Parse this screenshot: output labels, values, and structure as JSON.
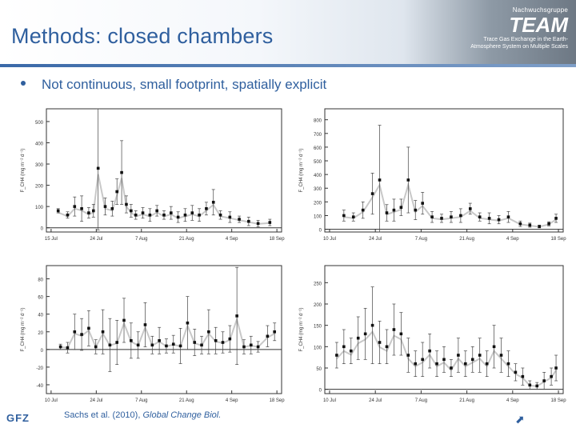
{
  "slide": {
    "title": "Methods: closed chambers",
    "bullet": "Not continuous, small footprint, spatially explicit",
    "citation_prefix": "Sachs et al. (2010), ",
    "citation_journal": "Global Change Biol.",
    "footer_logo": "GFZ"
  },
  "brand": {
    "small": "Nachwuchsgruppe",
    "name": "TEAM",
    "line1": "Trace Gas Exchange in the Earth-",
    "line2": "Atmosphere System on Multiple Scales"
  },
  "colors": {
    "title": "#2f5f9e",
    "line": "#c8c8c8",
    "marker": "#111111"
  },
  "chart_data": [
    {
      "type": "line",
      "ylabel": "F_CH4 (mg m⁻² d⁻¹)",
      "ylim": [
        -20,
        560
      ],
      "yticks": [
        0,
        100,
        200,
        300,
        400,
        500
      ],
      "xticks": [
        "15 Jul",
        "24 Jul",
        "7 Aug",
        "21 Aug",
        "4 Sep",
        "18 Sep"
      ],
      "zero_line": true,
      "points": [
        {
          "x": 0.05,
          "y": 80,
          "e": 10
        },
        {
          "x": 0.09,
          "y": 60,
          "e": 15
        },
        {
          "x": 0.12,
          "y": 100,
          "e": 45
        },
        {
          "x": 0.15,
          "y": 90,
          "e": 60
        },
        {
          "x": 0.18,
          "y": 70,
          "e": 25
        },
        {
          "x": 0.2,
          "y": 80,
          "e": 30
        },
        {
          "x": 0.22,
          "y": 280,
          "e": 290
        },
        {
          "x": 0.25,
          "y": 100,
          "e": 40
        },
        {
          "x": 0.28,
          "y": 90,
          "e": 35
        },
        {
          "x": 0.3,
          "y": 170,
          "e": 60
        },
        {
          "x": 0.32,
          "y": 260,
          "e": 150
        },
        {
          "x": 0.34,
          "y": 110,
          "e": 40
        },
        {
          "x": 0.36,
          "y": 80,
          "e": 30
        },
        {
          "x": 0.38,
          "y": 60,
          "e": 20
        },
        {
          "x": 0.41,
          "y": 70,
          "e": 25
        },
        {
          "x": 0.44,
          "y": 60,
          "e": 30
        },
        {
          "x": 0.47,
          "y": 80,
          "e": 25
        },
        {
          "x": 0.5,
          "y": 60,
          "e": 20
        },
        {
          "x": 0.53,
          "y": 70,
          "e": 30
        },
        {
          "x": 0.56,
          "y": 50,
          "e": 25
        },
        {
          "x": 0.59,
          "y": 60,
          "e": 30
        },
        {
          "x": 0.62,
          "y": 70,
          "e": 35
        },
        {
          "x": 0.65,
          "y": 60,
          "e": 30
        },
        {
          "x": 0.68,
          "y": 90,
          "e": 30
        },
        {
          "x": 0.71,
          "y": 120,
          "e": 60
        },
        {
          "x": 0.74,
          "y": 60,
          "e": 20
        },
        {
          "x": 0.78,
          "y": 50,
          "e": 25
        },
        {
          "x": 0.82,
          "y": 40,
          "e": 15
        },
        {
          "x": 0.86,
          "y": 30,
          "e": 20
        },
        {
          "x": 0.9,
          "y": 20,
          "e": 15
        },
        {
          "x": 0.95,
          "y": 25,
          "e": 15
        }
      ]
    },
    {
      "type": "line",
      "ylabel": "F_CH4 (mg m⁻² d⁻¹)",
      "ylim": [
        -20,
        880
      ],
      "yticks": [
        0,
        100,
        200,
        300,
        400,
        500,
        600,
        700,
        800
      ],
      "xticks": [
        "10 Jul",
        "24 Jul",
        "7 Aug",
        "21 Aug",
        "4 Sep",
        "18 Sep"
      ],
      "zero_line": true,
      "points": [
        {
          "x": 0.08,
          "y": 100,
          "e": 40
        },
        {
          "x": 0.12,
          "y": 90,
          "e": 30
        },
        {
          "x": 0.16,
          "y": 140,
          "e": 60
        },
        {
          "x": 0.2,
          "y": 260,
          "e": 150
        },
        {
          "x": 0.23,
          "y": 360,
          "e": 400
        },
        {
          "x": 0.26,
          "y": 120,
          "e": 60
        },
        {
          "x": 0.29,
          "y": 140,
          "e": 80
        },
        {
          "x": 0.32,
          "y": 160,
          "e": 60
        },
        {
          "x": 0.35,
          "y": 360,
          "e": 240
        },
        {
          "x": 0.38,
          "y": 140,
          "e": 70
        },
        {
          "x": 0.41,
          "y": 190,
          "e": 80
        },
        {
          "x": 0.45,
          "y": 90,
          "e": 40
        },
        {
          "x": 0.49,
          "y": 80,
          "e": 30
        },
        {
          "x": 0.53,
          "y": 90,
          "e": 40
        },
        {
          "x": 0.57,
          "y": 100,
          "e": 50
        },
        {
          "x": 0.61,
          "y": 150,
          "e": 40
        },
        {
          "x": 0.65,
          "y": 90,
          "e": 30
        },
        {
          "x": 0.69,
          "y": 80,
          "e": 40
        },
        {
          "x": 0.73,
          "y": 70,
          "e": 30
        },
        {
          "x": 0.77,
          "y": 90,
          "e": 40
        },
        {
          "x": 0.82,
          "y": 40,
          "e": 20
        },
        {
          "x": 0.86,
          "y": 30,
          "e": 15
        },
        {
          "x": 0.9,
          "y": 20,
          "e": 10
        },
        {
          "x": 0.94,
          "y": 40,
          "e": 15
        },
        {
          "x": 0.97,
          "y": 80,
          "e": 30
        }
      ]
    },
    {
      "type": "line",
      "ylabel": "F_CH4 (mg m⁻² d⁻¹)",
      "ylim": [
        -50,
        95
      ],
      "yticks": [
        -40,
        -20,
        0,
        20,
        40,
        60,
        80
      ],
      "xticks": [
        "10 Jul",
        "24 Jul",
        "7 Aug",
        "21 Aug",
        "4 Sep",
        "18 Sep"
      ],
      "zero_line": true,
      "points": [
        {
          "x": 0.06,
          "y": 3,
          "e": 3
        },
        {
          "x": 0.09,
          "y": 2,
          "e": 6
        },
        {
          "x": 0.12,
          "y": 20,
          "e": 20
        },
        {
          "x": 0.15,
          "y": 17,
          "e": 18
        },
        {
          "x": 0.18,
          "y": 24,
          "e": 20
        },
        {
          "x": 0.21,
          "y": 3,
          "e": 8
        },
        {
          "x": 0.24,
          "y": 20,
          "e": 25
        },
        {
          "x": 0.27,
          "y": 5,
          "e": 30
        },
        {
          "x": 0.3,
          "y": 8,
          "e": 25
        },
        {
          "x": 0.33,
          "y": 33,
          "e": 25
        },
        {
          "x": 0.36,
          "y": 10,
          "e": 20
        },
        {
          "x": 0.39,
          "y": 5,
          "e": 15
        },
        {
          "x": 0.42,
          "y": 28,
          "e": 25
        },
        {
          "x": 0.45,
          "y": 5,
          "e": 10
        },
        {
          "x": 0.48,
          "y": 10,
          "e": 15
        },
        {
          "x": 0.51,
          "y": 4,
          "e": 8
        },
        {
          "x": 0.54,
          "y": 6,
          "e": 10
        },
        {
          "x": 0.57,
          "y": 4,
          "e": 20
        },
        {
          "x": 0.6,
          "y": 30,
          "e": 30
        },
        {
          "x": 0.63,
          "y": 8,
          "e": 15
        },
        {
          "x": 0.66,
          "y": 5,
          "e": 10
        },
        {
          "x": 0.69,
          "y": 20,
          "e": 25
        },
        {
          "x": 0.72,
          "y": 10,
          "e": 15
        },
        {
          "x": 0.75,
          "y": 8,
          "e": 12
        },
        {
          "x": 0.78,
          "y": 12,
          "e": 15
        },
        {
          "x": 0.81,
          "y": 38,
          "e": 55
        },
        {
          "x": 0.84,
          "y": 3,
          "e": 8
        },
        {
          "x": 0.87,
          "y": 5,
          "e": 10
        },
        {
          "x": 0.9,
          "y": 3,
          "e": 6
        },
        {
          "x": 0.94,
          "y": 15,
          "e": 12
        },
        {
          "x": 0.97,
          "y": 20,
          "e": 10
        }
      ]
    },
    {
      "type": "line",
      "ylabel": "F_CH4 (mg m⁻² d⁻¹)",
      "ylim": [
        -10,
        290
      ],
      "yticks": [
        0,
        50,
        100,
        150,
        200,
        250
      ],
      "xticks": [
        "10 Jul",
        "24 Jul",
        "7 Aug",
        "21 Aug",
        "4 Sep",
        "18 Sep"
      ],
      "zero_line": true,
      "points": [
        {
          "x": 0.05,
          "y": 80,
          "e": 30
        },
        {
          "x": 0.08,
          "y": 100,
          "e": 40
        },
        {
          "x": 0.11,
          "y": 90,
          "e": 30
        },
        {
          "x": 0.14,
          "y": 120,
          "e": 50
        },
        {
          "x": 0.17,
          "y": 130,
          "e": 60
        },
        {
          "x": 0.2,
          "y": 150,
          "e": 90
        },
        {
          "x": 0.23,
          "y": 110,
          "e": 50
        },
        {
          "x": 0.26,
          "y": 100,
          "e": 40
        },
        {
          "x": 0.29,
          "y": 140,
          "e": 60
        },
        {
          "x": 0.32,
          "y": 130,
          "e": 50
        },
        {
          "x": 0.35,
          "y": 80,
          "e": 40
        },
        {
          "x": 0.38,
          "y": 60,
          "e": 30
        },
        {
          "x": 0.41,
          "y": 70,
          "e": 40
        },
        {
          "x": 0.44,
          "y": 90,
          "e": 40
        },
        {
          "x": 0.47,
          "y": 60,
          "e": 30
        },
        {
          "x": 0.5,
          "y": 70,
          "e": 30
        },
        {
          "x": 0.53,
          "y": 50,
          "e": 20
        },
        {
          "x": 0.56,
          "y": 80,
          "e": 40
        },
        {
          "x": 0.59,
          "y": 60,
          "e": 30
        },
        {
          "x": 0.62,
          "y": 70,
          "e": 30
        },
        {
          "x": 0.65,
          "y": 80,
          "e": 40
        },
        {
          "x": 0.68,
          "y": 60,
          "e": 30
        },
        {
          "x": 0.71,
          "y": 100,
          "e": 50
        },
        {
          "x": 0.74,
          "y": 80,
          "e": 40
        },
        {
          "x": 0.77,
          "y": 60,
          "e": 30
        },
        {
          "x": 0.8,
          "y": 40,
          "e": 20
        },
        {
          "x": 0.83,
          "y": 30,
          "e": 20
        },
        {
          "x": 0.86,
          "y": 10,
          "e": 10
        },
        {
          "x": 0.89,
          "y": 8,
          "e": 8
        },
        {
          "x": 0.92,
          "y": 20,
          "e": 20
        },
        {
          "x": 0.95,
          "y": 30,
          "e": 20
        },
        {
          "x": 0.97,
          "y": 50,
          "e": 30
        }
      ]
    }
  ]
}
